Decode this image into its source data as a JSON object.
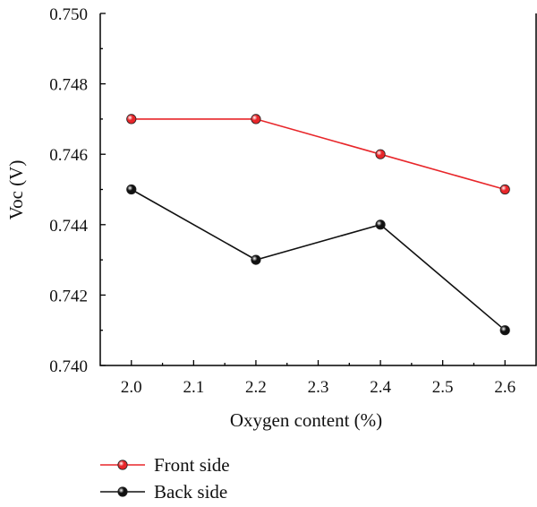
{
  "chart_data": {
    "type": "line",
    "title": "",
    "xlabel": "Oxygen content (%)",
    "ylabel": "Voc (V)",
    "xlim": [
      1.95,
      2.65
    ],
    "ylim": [
      0.74,
      0.75
    ],
    "x_ticks": [
      "2.0",
      "2.1",
      "2.2",
      "2.3",
      "2.4",
      "2.5",
      "2.6"
    ],
    "y_ticks": [
      "0.740",
      "0.742",
      "0.744",
      "0.746",
      "0.748",
      "0.750"
    ],
    "x": [
      2.0,
      2.2,
      2.4,
      2.6
    ],
    "series": [
      {
        "name": "Front side",
        "color": "#e8262a",
        "values": [
          0.747,
          0.747,
          0.746,
          0.745
        ]
      },
      {
        "name": "Back side",
        "color": "#111111",
        "values": [
          0.745,
          0.743,
          0.744,
          0.741
        ]
      }
    ],
    "grid": false,
    "legend": "bottom-left"
  }
}
